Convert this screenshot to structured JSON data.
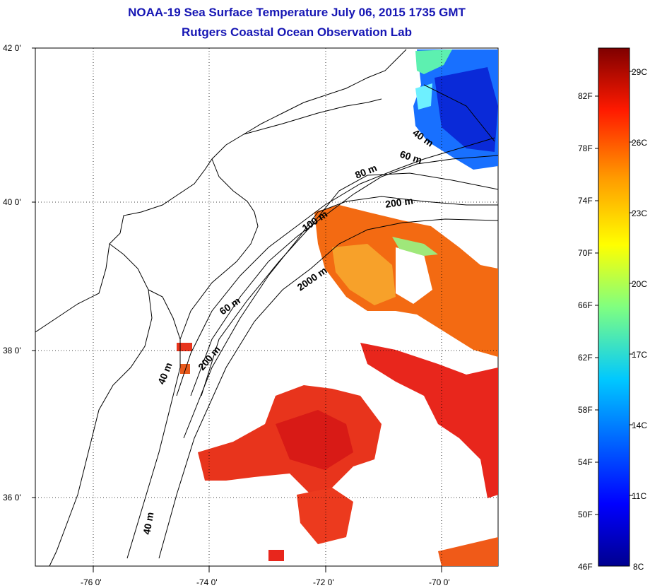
{
  "header": {
    "title_line1": "NOAA-19 Sea Surface Temperature July 06, 2015 1735 GMT",
    "title_line2": "Rutgers Coastal Ocean Observation Lab"
  },
  "map": {
    "lat_labels": [
      "42 0'",
      "40 0'",
      "38 0'",
      "36 0'"
    ],
    "lon_labels": [
      "-76 0'",
      "-74 0'",
      "-72 0'",
      "-70 0'"
    ],
    "contour_labels": [
      "40 m",
      "60 m",
      "80 m",
      "200 m",
      "100 m",
      "2000 m",
      "60 m",
      "40 m",
      "200 m",
      "40 m"
    ]
  },
  "colorbar": {
    "fahrenheit_labels": [
      "82F",
      "78F",
      "74F",
      "70F",
      "66F",
      "62F",
      "58F",
      "54F",
      "50F",
      "46F"
    ],
    "celsius_labels": [
      "29C",
      "26C",
      "23C",
      "20C",
      "17C",
      "14C",
      "11C",
      "8C"
    ],
    "colors": [
      "#7f0000",
      "#ff0000",
      "#ff8c00",
      "#ffff00",
      "#00ffff",
      "#0080ff",
      "#0000ff",
      "#00008f"
    ]
  }
}
